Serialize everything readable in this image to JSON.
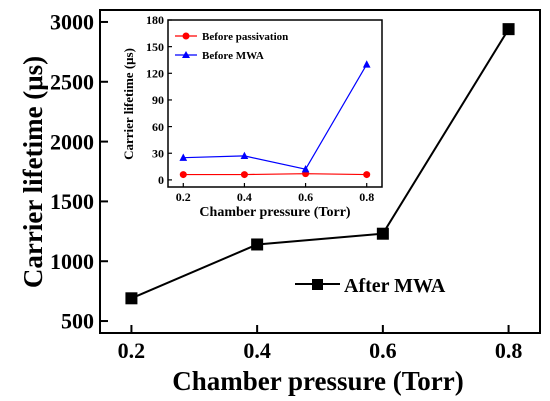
{
  "chart_data": [
    {
      "type": "line",
      "xlabel": "Chamber pressure (Torr)",
      "ylabel": "Carrier lifetime (μs)",
      "xlim": [
        0.15,
        0.85
      ],
      "ylim": [
        400,
        3100
      ],
      "x_ticks": [
        "0.2",
        "0.4",
        "0.6",
        "0.8"
      ],
      "y_ticks": [
        "500",
        "1000",
        "1500",
        "2000",
        "2500",
        "3000"
      ],
      "legend_position": "bottom-right",
      "grid": false,
      "series": [
        {
          "name": "After MWA",
          "color": "#000000",
          "marker": "square",
          "x": [
            0.2,
            0.4,
            0.6,
            0.8
          ],
          "y": [
            690,
            1140,
            1230,
            2940
          ]
        }
      ]
    },
    {
      "type": "line",
      "inset": true,
      "xlabel": "Chamber pressure (Torr)",
      "ylabel": "Carrier lifetime (μs)",
      "xlim": [
        0.15,
        0.85
      ],
      "ylim": [
        -8,
        180
      ],
      "x_ticks": [
        "0.2",
        "0.4",
        "0.6",
        "0.8"
      ],
      "y_ticks": [
        "0",
        "30",
        "60",
        "90",
        "120",
        "150",
        "180"
      ],
      "legend_position": "top-left",
      "grid": false,
      "series": [
        {
          "name": "Before passivation",
          "color": "#ff0000",
          "marker": "circle",
          "x": [
            0.2,
            0.4,
            0.6,
            0.8
          ],
          "y": [
            6,
            6,
            7,
            6
          ]
        },
        {
          "name": "Before MWA",
          "color": "#0000ff",
          "marker": "triangle",
          "x": [
            0.2,
            0.4,
            0.6,
            0.8
          ],
          "y": [
            25,
            27,
            12,
            130
          ]
        }
      ]
    }
  ]
}
